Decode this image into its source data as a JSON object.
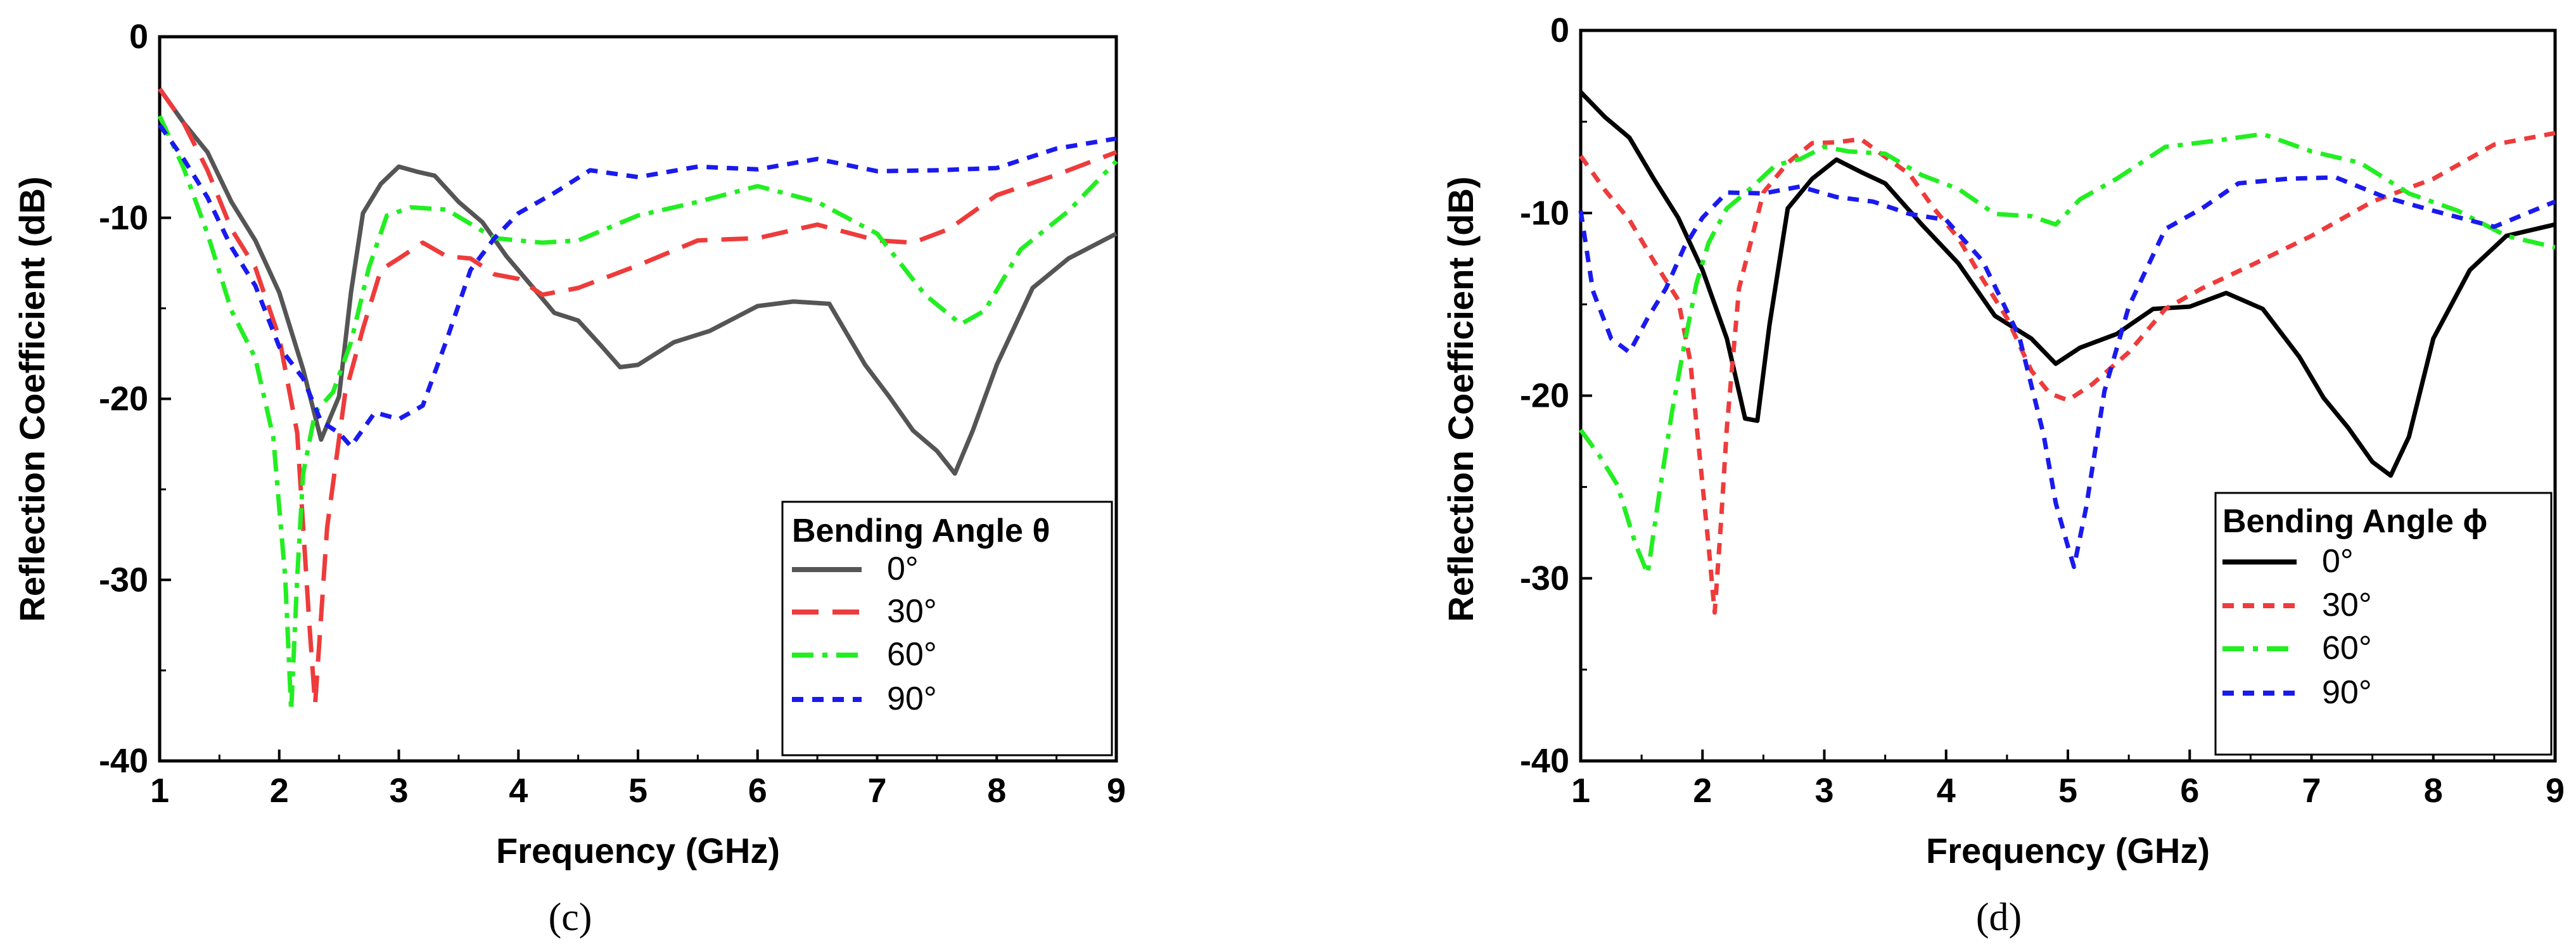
{
  "chart_data": [
    {
      "type": "line",
      "panel_label": "(c)",
      "title": "",
      "xlabel": "Frequency (GHz)",
      "ylabel": "Reflection Coefficient (dB)",
      "xlim": [
        1,
        9
      ],
      "ylim": [
        -40,
        0
      ],
      "xticks": [
        "1",
        "2",
        "3",
        "4",
        "5",
        "6",
        "7",
        "8",
        "9"
      ],
      "yticks": [
        "0",
        "-10",
        "-20",
        "-30",
        "-40"
      ],
      "legend_title": "Bending Angle θ",
      "legend_position": "bottom-right",
      "series": [
        {
          "name": "0°",
          "color": "#555555",
          "dash": "solid",
          "x": [
            1.0,
            1.2,
            1.4,
            1.6,
            1.8,
            2.0,
            2.2,
            2.35,
            2.5,
            2.6,
            2.7,
            2.85,
            3.0,
            3.15,
            3.3,
            3.5,
            3.7,
            3.9,
            4.1,
            4.3,
            4.5,
            4.7,
            4.85,
            5.0,
            5.3,
            5.6,
            6.0,
            6.3,
            6.6,
            6.9,
            7.1,
            7.3,
            7.5,
            7.65,
            7.8,
            8.0,
            8.3,
            8.6,
            9.0
          ],
          "y": [
            -3,
            -4.5,
            -6.5,
            -9,
            -11.5,
            -14,
            -18.5,
            -22,
            -20,
            -14,
            -10,
            -8,
            -7.3,
            -7.2,
            -7.8,
            -9,
            -10.5,
            -12,
            -13.8,
            -15,
            -15.8,
            -17,
            -18.5,
            -18,
            -17,
            -16,
            -15,
            -14.5,
            -15,
            -18,
            -20,
            -21.5,
            -23,
            -24,
            -22,
            -18,
            -14,
            -12,
            -11
          ]
        },
        {
          "name": "30°",
          "color": "#ee3b3b",
          "dash": "long-dash",
          "x": [
            1.0,
            1.2,
            1.4,
            1.6,
            1.8,
            2.0,
            2.15,
            2.25,
            2.3,
            2.4,
            2.55,
            2.7,
            2.85,
            3.0,
            3.2,
            3.4,
            3.6,
            3.8,
            4.0,
            4.2,
            4.5,
            5.0,
            5.5,
            6.0,
            6.5,
            7.0,
            7.3,
            7.6,
            8.0,
            8.5,
            9.0
          ],
          "y": [
            -3,
            -4.5,
            -7.5,
            -10.5,
            -13,
            -16.5,
            -22,
            -32,
            -37,
            -27,
            -20,
            -16,
            -13,
            -12,
            -11.5,
            -12,
            -12.5,
            -13,
            -13.5,
            -14,
            -14,
            -12.5,
            -11.5,
            -11,
            -10.5,
            -11,
            -11.5,
            -10.5,
            -9,
            -7.5,
            -6.5
          ]
        },
        {
          "name": "60°",
          "color": "#22ee22",
          "dash": "dash-dot",
          "x": [
            1.0,
            1.2,
            1.4,
            1.6,
            1.8,
            1.95,
            2.05,
            2.1,
            2.15,
            2.2,
            2.3,
            2.45,
            2.6,
            2.75,
            2.9,
            3.1,
            3.4,
            3.8,
            4.2,
            4.5,
            5.0,
            5.5,
            6.0,
            6.5,
            7.0,
            7.4,
            7.7,
            7.9,
            8.2,
            8.6,
            9.0
          ],
          "y": [
            -4.5,
            -7,
            -11,
            -15,
            -18,
            -22,
            -30,
            -37,
            -30,
            -24,
            -21,
            -19.5,
            -17,
            -12.5,
            -10,
            -9.3,
            -9.8,
            -11,
            -11.5,
            -11,
            -10,
            -9,
            -8.5,
            -9,
            -11,
            -14,
            -16,
            -15,
            -12,
            -9.5,
            -7
          ]
        },
        {
          "name": "90°",
          "color": "#1a1aee",
          "dash": "short-dash",
          "x": [
            1.0,
            1.2,
            1.4,
            1.6,
            1.8,
            2.0,
            2.2,
            2.35,
            2.5,
            2.6,
            2.8,
            3.0,
            3.2,
            3.4,
            3.6,
            3.8,
            4.0,
            4.3,
            4.6,
            5.0,
            5.5,
            6.0,
            6.5,
            7.0,
            7.5,
            8.0,
            8.5,
            9.0
          ],
          "y": [
            -5,
            -6.5,
            -9,
            -11.5,
            -14,
            -17,
            -19,
            -21,
            -22,
            -22.5,
            -21,
            -21,
            -20.5,
            -16.5,
            -13,
            -11,
            -10,
            -8.5,
            -7.5,
            -7.5,
            -7.3,
            -7.2,
            -7.0,
            -7.3,
            -7.5,
            -7.0,
            -6.3,
            -5.5
          ]
        }
      ]
    },
    {
      "type": "line",
      "panel_label": "(d)",
      "title": "",
      "xlabel": "Frequency (GHz)",
      "ylabel": "Reflection Coefficient (dB)",
      "xlim": [
        1,
        9
      ],
      "ylim": [
        -40,
        0
      ],
      "xticks": [
        "1",
        "2",
        "3",
        "4",
        "5",
        "6",
        "7",
        "8",
        "9"
      ],
      "yticks": [
        "0",
        "-10",
        "-20",
        "-30",
        "-40"
      ],
      "legend_title": "Bending Angle ϕ",
      "legend_position": "bottom-right",
      "series": [
        {
          "name": "0°",
          "color": "#000000",
          "dash": "solid",
          "x": [
            1.0,
            1.2,
            1.4,
            1.6,
            1.8,
            2.0,
            2.2,
            2.35,
            2.45,
            2.55,
            2.7,
            2.9,
            3.1,
            3.3,
            3.5,
            3.8,
            4.1,
            4.4,
            4.7,
            4.9,
            5.1,
            5.4,
            5.7,
            6.0,
            6.3,
            6.6,
            6.9,
            7.1,
            7.3,
            7.5,
            7.65,
            7.8,
            8.0,
            8.3,
            8.6,
            9.0
          ],
          "y": [
            -3.5,
            -4.5,
            -6,
            -8,
            -10.5,
            -13,
            -17,
            -21,
            -21.5,
            -16,
            -10,
            -8,
            -7.2,
            -7.5,
            -8.5,
            -10.5,
            -13,
            -15.5,
            -17,
            -18,
            -17.5,
            -16.5,
            -15.5,
            -15,
            -14.5,
            -15,
            -18,
            -20,
            -22,
            -23.5,
            -24.5,
            -22,
            -17,
            -13,
            -11.5,
            -10.5
          ]
        },
        {
          "name": "30°",
          "color": "#ee3b3b",
          "dash": "short-dash",
          "x": [
            1.0,
            1.2,
            1.4,
            1.6,
            1.8,
            1.9,
            2.0,
            2.05,
            2.1,
            2.15,
            2.2,
            2.3,
            2.5,
            2.7,
            2.9,
            3.1,
            3.3,
            3.5,
            3.7,
            3.9,
            4.1,
            4.3,
            4.5,
            4.7,
            4.85,
            5.0,
            5.2,
            5.5,
            5.8,
            6.1,
            6.5,
            7.0,
            7.5,
            8.0,
            8.5,
            9.0
          ],
          "y": [
            -7,
            -8.5,
            -10.5,
            -12.5,
            -15,
            -18,
            -25,
            -28,
            -32,
            -27,
            -22,
            -14,
            -9,
            -7,
            -6.3,
            -6.0,
            -6.2,
            -6.8,
            -8,
            -9.5,
            -11.5,
            -13.5,
            -16,
            -18.5,
            -20,
            -20,
            -19.5,
            -17.5,
            -15.5,
            -14,
            -13,
            -11,
            -9.5,
            -8,
            -6.5,
            -5.5
          ]
        },
        {
          "name": "60°",
          "color": "#22ee22",
          "dash": "dash-dot",
          "x": [
            1.0,
            1.15,
            1.3,
            1.45,
            1.55,
            1.65,
            1.75,
            1.85,
            1.95,
            2.05,
            2.2,
            2.4,
            2.6,
            2.8,
            3.0,
            3.2,
            3.5,
            3.8,
            4.1,
            4.4,
            4.7,
            4.9,
            5.1,
            5.4,
            5.8,
            6.2,
            6.6,
            7.0,
            7.4,
            7.8,
            8.2,
            8.6,
            9.0
          ],
          "y": [
            -22,
            -23,
            -25,
            -28,
            -30,
            -25,
            -21,
            -17,
            -14,
            -11.5,
            -10,
            -8.5,
            -7.5,
            -6.8,
            -6.5,
            -6.5,
            -7,
            -7.8,
            -8.8,
            -9.8,
            -10.3,
            -10.5,
            -9.5,
            -8,
            -6.5,
            -5.8,
            -5.8,
            -6.5,
            -7.5,
            -8.8,
            -10,
            -11,
            -12
          ]
        },
        {
          "name": "90°",
          "color": "#1a1aee",
          "dash": "short-dash",
          "x": [
            1.0,
            1.1,
            1.25,
            1.4,
            1.55,
            1.7,
            1.85,
            2.0,
            2.2,
            2.5,
            2.8,
            3.1,
            3.4,
            3.7,
            4.0,
            4.3,
            4.6,
            4.8,
            4.9,
            5.0,
            5.05,
            5.15,
            5.3,
            5.5,
            5.8,
            6.1,
            6.4,
            6.8,
            7.2,
            7.6,
            8.0,
            8.5,
            9.0
          ],
          "y": [
            -10,
            -14,
            -17,
            -17.5,
            -16,
            -14,
            -12,
            -10,
            -9,
            -8.8,
            -8.8,
            -9,
            -9.5,
            -9.8,
            -10.5,
            -12.5,
            -17,
            -22,
            -26,
            -28,
            -29.5,
            -26,
            -20,
            -15,
            -11,
            -9.5,
            -8.5,
            -8,
            -8.3,
            -9,
            -10,
            -10.5,
            -9.5
          ]
        }
      ]
    }
  ]
}
